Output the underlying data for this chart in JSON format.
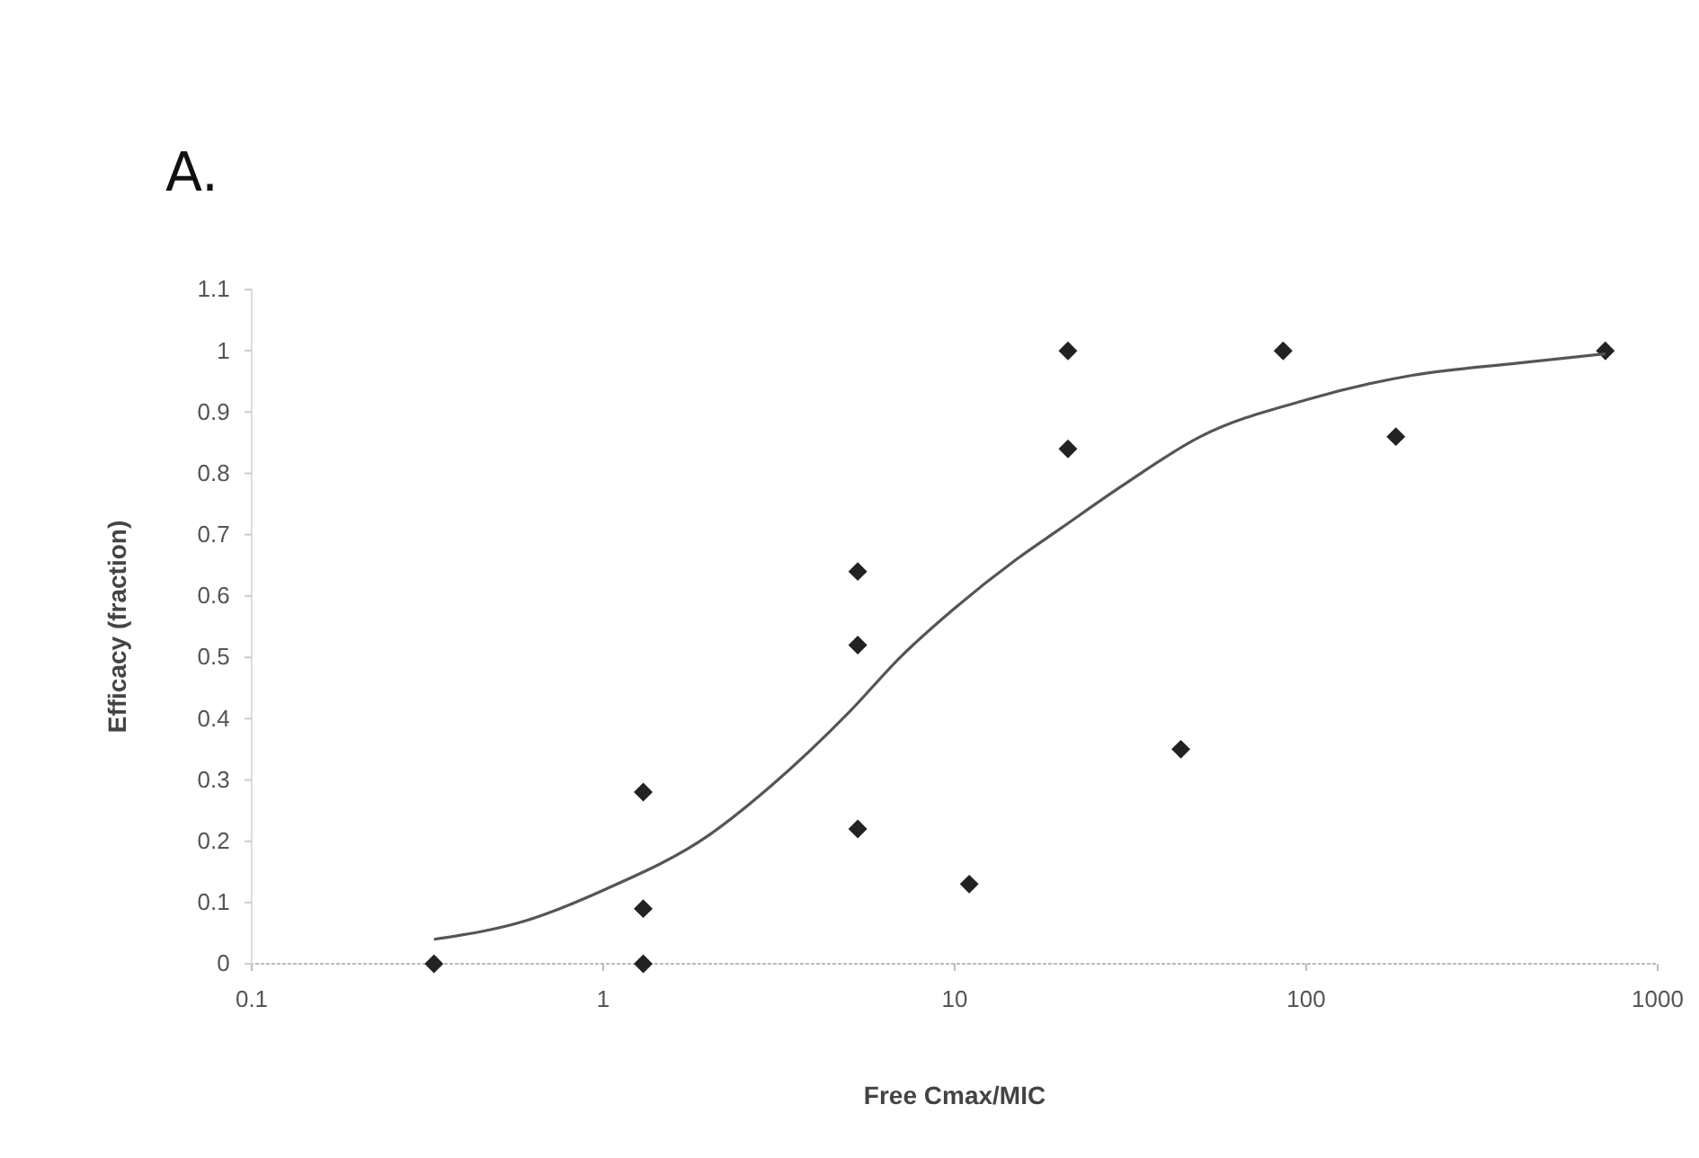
{
  "chart_data": {
    "type": "scatter",
    "title": "A.",
    "xlabel": "Free Cmax/MIC",
    "ylabel": "Efficacy (fraction)",
    "log": "x",
    "xlim": [
      0.1,
      1000
    ],
    "xticks": [
      0.1,
      1,
      10,
      100,
      1000
    ],
    "ylim": [
      0,
      1.1
    ],
    "yticks": [
      0,
      0.1,
      0.2,
      0.3,
      0.4,
      0.5,
      0.6,
      0.7,
      0.8,
      0.9,
      1,
      1.1
    ],
    "grid": false,
    "series": [
      {
        "marker": "diamond",
        "color": "#222222",
        "x": [
          0.33,
          1.3,
          1.3,
          1.3,
          5.3,
          5.3,
          5.3,
          11,
          21,
          21,
          44,
          86,
          180,
          710
        ],
        "values": [
          0,
          0.28,
          0.09,
          0,
          0.64,
          0.52,
          0.22,
          0.13,
          1,
          0.84,
          0.35,
          1,
          0.86,
          1
        ]
      },
      {
        "type": "line",
        "marker": "none",
        "color": "#555555",
        "x": [
          0.33,
          0.6,
          1,
          2,
          3,
          5,
          7,
          10,
          15,
          20,
          30,
          50,
          100,
          200,
          400,
          710
        ],
        "values": [
          0.04,
          0.07,
          0.12,
          0.21,
          0.29,
          0.41,
          0.5,
          0.58,
          0.66,
          0.71,
          0.78,
          0.86,
          0.92,
          0.96,
          0.98,
          0.995
        ]
      }
    ]
  }
}
